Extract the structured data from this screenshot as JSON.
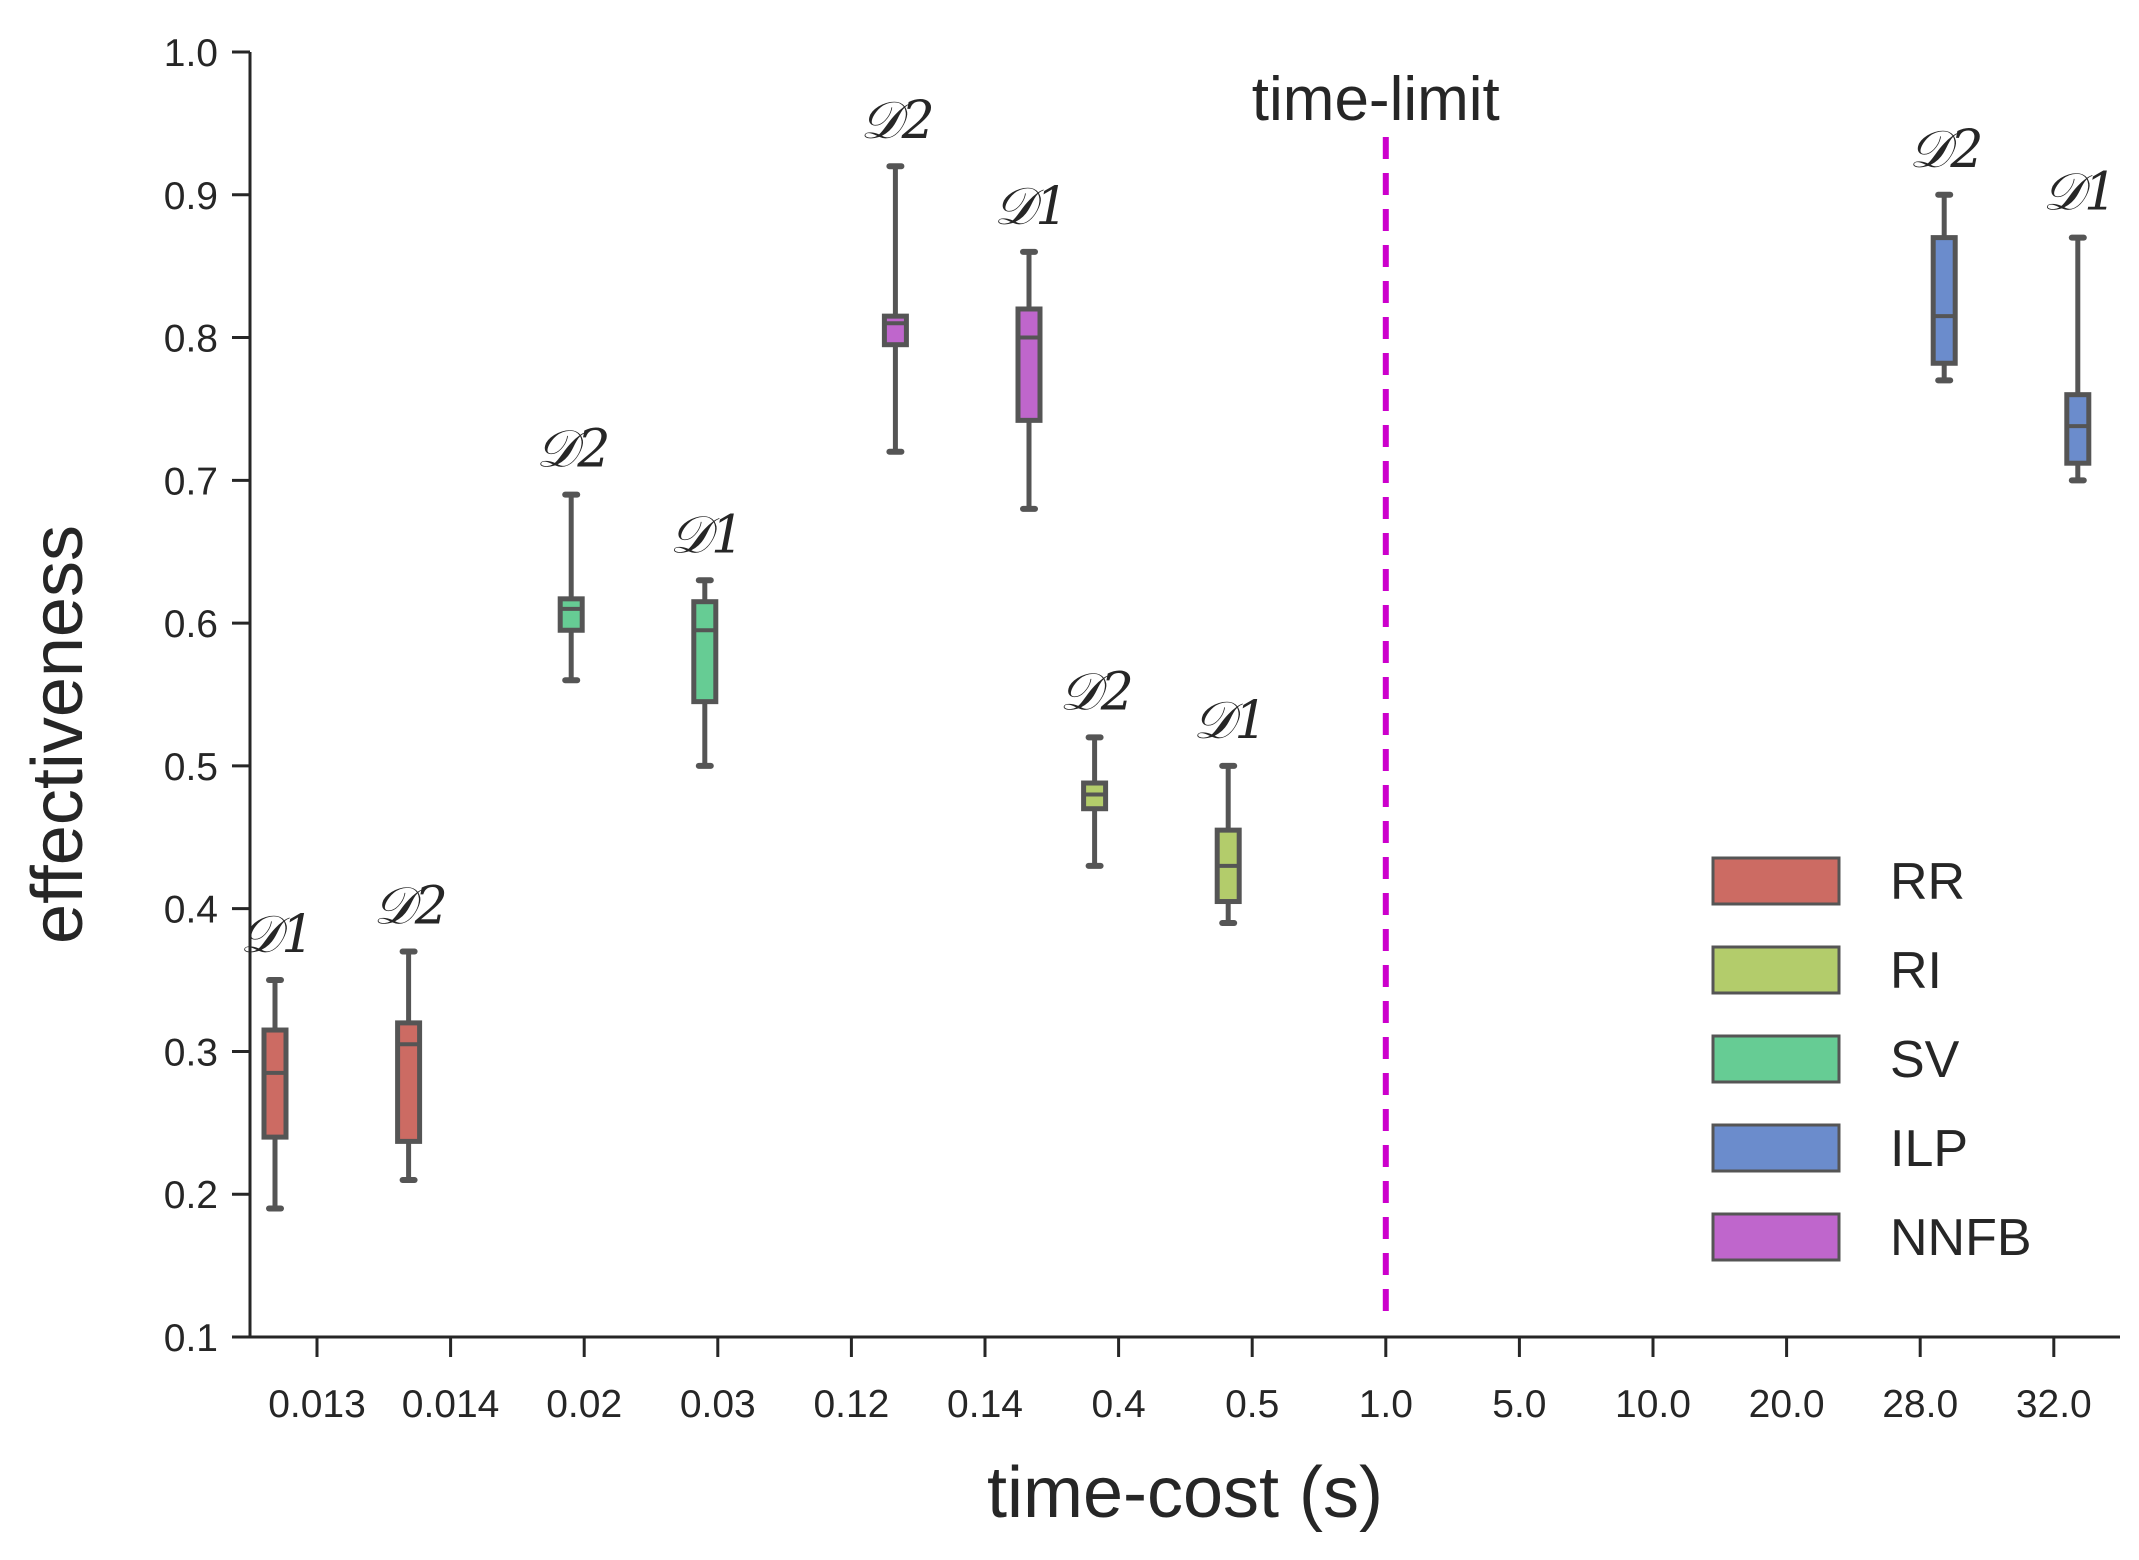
{
  "chart_data": {
    "type": "boxplot",
    "title": "",
    "xlabel": "time-cost (s)",
    "ylabel": "effectiveness",
    "ylim": [
      0.1,
      1.0
    ],
    "yticks": [
      "0.1",
      "0.2",
      "0.3",
      "0.4",
      "0.5",
      "0.6",
      "0.7",
      "0.8",
      "0.9",
      "1.0"
    ],
    "categories": [
      "0.013",
      "0.014",
      "0.02",
      "0.03",
      "0.12",
      "0.14",
      "0.4",
      "0.5",
      "1.0",
      "5.0",
      "10.0",
      "20.0",
      "28.0",
      "32.0"
    ],
    "time_limit": {
      "category": "1.0",
      "label": "time-limit",
      "color": "#cc00cc"
    },
    "series": [
      {
        "name": "RR",
        "color": "#cc6b63"
      },
      {
        "name": "RI",
        "color": "#b3cc6b"
      },
      {
        "name": "SV",
        "color": "#66cc94"
      },
      {
        "name": "ILP",
        "color": "#6b8ccc"
      },
      {
        "name": "NNFB",
        "color": "#bf66cc"
      }
    ],
    "boxes": [
      {
        "series": "RR",
        "category": "0.013",
        "dataset": "𝒟1",
        "min": 0.19,
        "q1": 0.24,
        "median": 0.285,
        "q3": 0.315,
        "max": 0.35
      },
      {
        "series": "RR",
        "category": "0.014",
        "dataset": "𝒟2",
        "min": 0.21,
        "q1": 0.237,
        "median": 0.305,
        "q3": 0.32,
        "max": 0.37
      },
      {
        "series": "SV",
        "category": "0.02",
        "dataset": "𝒟2",
        "min": 0.56,
        "q1": 0.595,
        "median": 0.61,
        "q3": 0.617,
        "max": 0.69
      },
      {
        "series": "SV",
        "category": "0.03",
        "dataset": "𝒟1",
        "min": 0.5,
        "q1": 0.545,
        "median": 0.595,
        "q3": 0.615,
        "max": 0.63
      },
      {
        "series": "NNFB",
        "category": "0.12",
        "dataset": "𝒟2",
        "min": 0.72,
        "q1": 0.795,
        "median": 0.81,
        "q3": 0.815,
        "max": 0.92
      },
      {
        "series": "NNFB",
        "category": "0.14",
        "dataset": "𝒟1",
        "min": 0.68,
        "q1": 0.742,
        "median": 0.8,
        "q3": 0.82,
        "max": 0.86
      },
      {
        "series": "RI",
        "category": "0.4",
        "dataset": "𝒟2",
        "min": 0.43,
        "q1": 0.47,
        "median": 0.48,
        "q3": 0.488,
        "max": 0.52
      },
      {
        "series": "RI",
        "category": "0.5",
        "dataset": "𝒟1",
        "min": 0.39,
        "q1": 0.405,
        "median": 0.43,
        "q3": 0.455,
        "max": 0.5
      },
      {
        "series": "ILP",
        "category": "28.0",
        "dataset": "𝒟2",
        "min": 0.77,
        "q1": 0.782,
        "median": 0.815,
        "q3": 0.87,
        "max": 0.9
      },
      {
        "series": "ILP",
        "category": "32.0",
        "dataset": "𝒟1",
        "min": 0.7,
        "q1": 0.712,
        "median": 0.738,
        "q3": 0.76,
        "max": 0.87
      }
    ],
    "legend": [
      "RR",
      "RI",
      "SV",
      "ILP",
      "NNFB"
    ],
    "legend_position": "bottom-right",
    "grid": false
  }
}
